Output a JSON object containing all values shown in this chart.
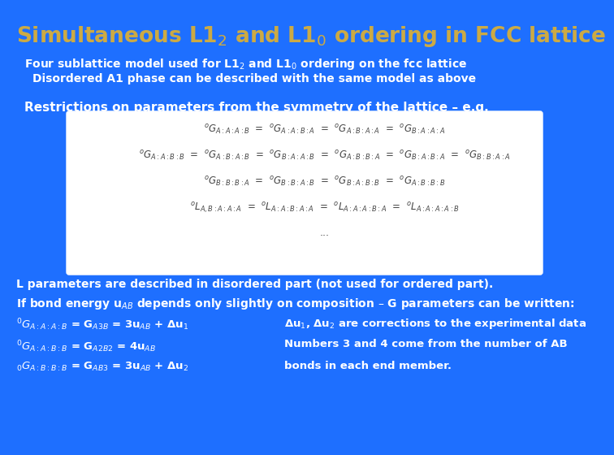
{
  "bg_color": "#1E6FFF",
  "title_color": "#CCAA44",
  "text_color": "white",
  "title": "Simultaneous L1$_2$ and L1$_0$ ordering in FCC lattice",
  "subtitle1": "Four sublattice model used for L1$_2$ and L1$_0$ ordering on the fcc lattice",
  "subtitle2": "Disordered A1 phase can be described with the same model as above",
  "restriction_title": "Restrictions on parameters from the symmetry of the lattice – e.g.",
  "bottom_line1": "L parameters are described in disordered part (not used for ordered part).",
  "bottom_line2": "If bond energy u$_{AB}$ depends only slightly on composition – G parameters can be written:",
  "eq1_left": "$^0G_{A:A:A:B}$ = G$_{A3B}$ = 3u$_{AB}$ + Δu$_1$",
  "eq1_right": "Δu$_1$, Δu$_2$ are corrections to the experimental data",
  "eq2_left": "$^0G_{A:A:B:B}$ = G$_{A2B2}$ = 4u$_{AB}$",
  "eq2_right": "Numbers 3 and 4 come from the number of AB",
  "eq3_left": "$_0G_{A:B:B:B}$ = G$_{AB3}$ = 3u$_{AB}$ + Δu$_2$",
  "eq3_right": "bonds in each end member.",
  "box_eq1": "$^oG_{A:A:A:B}$  =  $^oG_{A:A:B:A}$  =  $^oG_{A:B:A:A}$  =  $^oG_{B:A:A:A}$",
  "box_eq2": "$^oG_{A:A:B:B}$  =  $^oG_{A:B:A:B}$  =  $^oG_{B:A:A:B}$  =  $^oG_{A:B:B:A}$  =  $^oG_{B:A:B:A}$  =  $^oG_{B:B:A:A}$",
  "box_eq3": "$^oG_{B:B:B:A}$  =  $^oG_{B:B:A:B}$  =  $^oG_{B:A:B:B}$  =  $^oG_{A:B:B:B}$",
  "box_eq4": "$^oL_{A,B:A:A:A}$  =  $^oL_{A:A:B:A:A}$  =  $^oL_{A:A:A:B:A}$  =  $^oL_{A:A:A:A:B}$"
}
